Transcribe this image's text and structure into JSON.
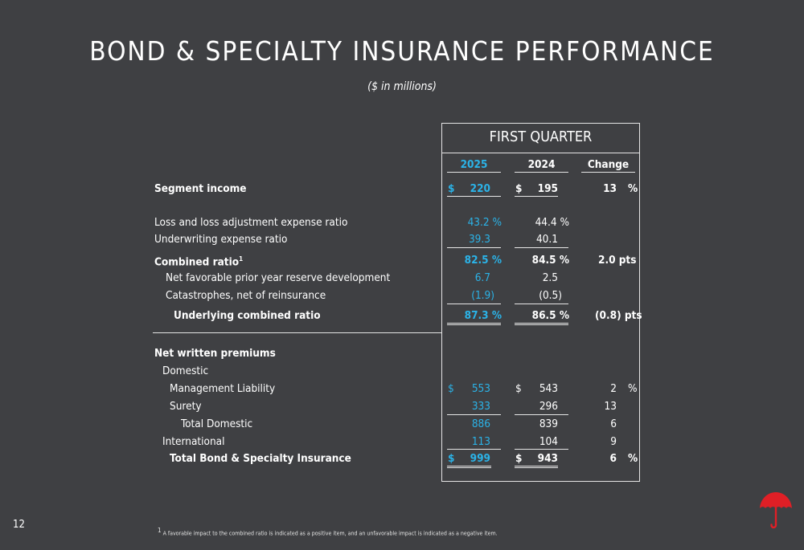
{
  "title": "BOND & SPECIALTY INSURANCE PERFORMANCE",
  "subtitle": "($ in millions)",
  "period_header": "FIRST QUARTER",
  "columns": {
    "current": "2025",
    "prior": "2024",
    "change": "Change"
  },
  "rows": {
    "segment_income": {
      "label": "Segment income",
      "cur_sym": "$",
      "cur": "220",
      "pri_sym": "$",
      "pri": "195",
      "chg": "13",
      "chg_unit": "%"
    },
    "loss_ratio": {
      "label": "Loss and loss adjustment expense ratio",
      "cur": "43.2 %",
      "pri": "44.4 %"
    },
    "uw_ratio": {
      "label": "Underwriting expense ratio",
      "cur": "39.3",
      "pri": "40.1"
    },
    "combined_ratio": {
      "label": "Combined ratio",
      "footnote_mark": "1",
      "cur": "82.5 %",
      "pri": "84.5 %",
      "chg": "2.0  pts"
    },
    "pyd": {
      "label": "Net favorable prior year reserve development",
      "cur": "6.7",
      "pri": "2.5"
    },
    "cat": {
      "label": "Catastrophes, net of reinsurance",
      "cur": "(1.9)",
      "pri": "(0.5)"
    },
    "underlying": {
      "label": "Underlying combined ratio",
      "cur": "87.3 %",
      "pri": "86.5 %",
      "chg": "(0.8) pts"
    },
    "nwp": {
      "label": "Net written premiums"
    },
    "domestic": {
      "label": "Domestic"
    },
    "mgmt": {
      "label": "Management Liability",
      "cur_sym": "$",
      "cur": "553",
      "pri_sym": "$",
      "pri": "543",
      "chg": "2",
      "chg_unit": "%"
    },
    "surety": {
      "label": "Surety",
      "cur": "333",
      "pri": "296",
      "chg": "13"
    },
    "total_domestic": {
      "label": "Total Domestic",
      "cur": "886",
      "pri": "839",
      "chg": "6"
    },
    "international": {
      "label": "International",
      "cur": "113",
      "pri": "104",
      "chg": "9"
    },
    "total_bsi": {
      "label": "Total Bond & Specialty Insurance",
      "cur_sym": "$",
      "cur": "999",
      "pri_sym": "$",
      "pri": "943",
      "chg": "6",
      "chg_unit": "%"
    }
  },
  "page_number": "12",
  "footnote": {
    "mark": "1",
    "text": "A favorable impact to the combined ratio is indicated as a positive item, and an unfavorable impact is indicated as a negative item."
  },
  "colors": {
    "background": "#3f4043",
    "accent_blue": "#2bb3e8",
    "logo_red": "#e01f26"
  },
  "logo_icon": "red-umbrella-icon"
}
